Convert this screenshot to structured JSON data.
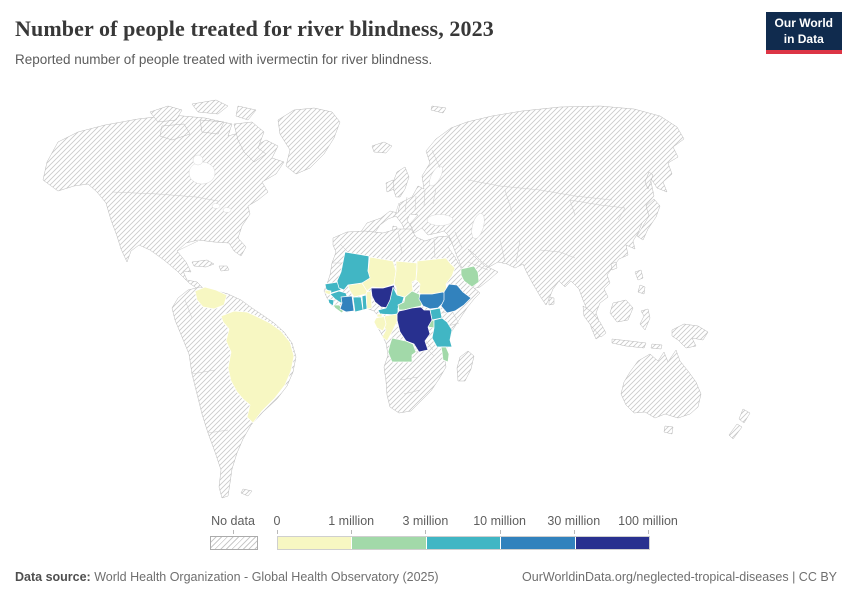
{
  "header": {
    "title": "Number of people treated for river blindness, 2023",
    "subtitle": "Reported number of people treated with ivermectin for river blindness.",
    "logo": {
      "line1": "Our World",
      "line2": "in Data"
    }
  },
  "legend": {
    "no_data_label": "No data",
    "tick_labels": [
      "0",
      "1 million",
      "3 million",
      "10 million",
      "30 million",
      "100 million"
    ],
    "bins": [
      {
        "label": "0 - 1 million",
        "color": "#f7f7c2"
      },
      {
        "label": "1 million - 3 million",
        "color": "#a2d9a9"
      },
      {
        "label": "3 million - 10 million",
        "color": "#41b6c4"
      },
      {
        "label": "10 million - 30 million",
        "color": "#3282bd"
      },
      {
        "label": "30 million - 100 million",
        "color": "#28308f"
      }
    ]
  },
  "footer": {
    "source_prefix": "Data source:",
    "source": "World Health Organization - Global Health Observatory (2025)",
    "credit": "OurWorldinData.org/neglected-tropical-diseases | CC BY"
  },
  "chart_data": {
    "type": "choropleth",
    "title": "Number of people treated for river blindness, 2023",
    "unit": "people treated with ivermectin",
    "thresholds": [
      0,
      1000000,
      3000000,
      10000000,
      30000000,
      100000000
    ],
    "no_data_style": "diagonal-hatch",
    "countries": [
      {
        "name": "Brazil",
        "bin": 0
      },
      {
        "name": "Venezuela",
        "bin": 0
      },
      {
        "name": "Guinea-Bissau",
        "bin": 0
      },
      {
        "name": "Burkina Faso",
        "bin": 0
      },
      {
        "name": "Benin",
        "bin": 0
      },
      {
        "name": "Niger",
        "bin": 0
      },
      {
        "name": "Chad",
        "bin": 0
      },
      {
        "name": "Sudan",
        "bin": 0
      },
      {
        "name": "Gabon",
        "bin": 0
      },
      {
        "name": "Equatorial Guinea",
        "bin": 0
      },
      {
        "name": "Congo",
        "bin": 0
      },
      {
        "name": "Liberia",
        "bin": 1
      },
      {
        "name": "Central African Republic",
        "bin": 1
      },
      {
        "name": "Angola",
        "bin": 1
      },
      {
        "name": "Rwanda-Burundi",
        "bin": 1
      },
      {
        "name": "Malawi",
        "bin": 1
      },
      {
        "name": "Yemen",
        "bin": 1
      },
      {
        "name": "Senegal",
        "bin": 2
      },
      {
        "name": "Guinea",
        "bin": 2
      },
      {
        "name": "Sierra Leone",
        "bin": 2
      },
      {
        "name": "Ghana",
        "bin": 2
      },
      {
        "name": "Togo",
        "bin": 2
      },
      {
        "name": "Mali",
        "bin": 2
      },
      {
        "name": "Cameroon",
        "bin": 2
      },
      {
        "name": "Uganda",
        "bin": 2
      },
      {
        "name": "Tanzania",
        "bin": 2
      },
      {
        "name": "Cote d'Ivoire",
        "bin": 3
      },
      {
        "name": "South Sudan",
        "bin": 3
      },
      {
        "name": "Ethiopia",
        "bin": 3
      },
      {
        "name": "Nigeria",
        "bin": 4
      },
      {
        "name": "Democratic Republic of Congo",
        "bin": 4
      }
    ]
  }
}
